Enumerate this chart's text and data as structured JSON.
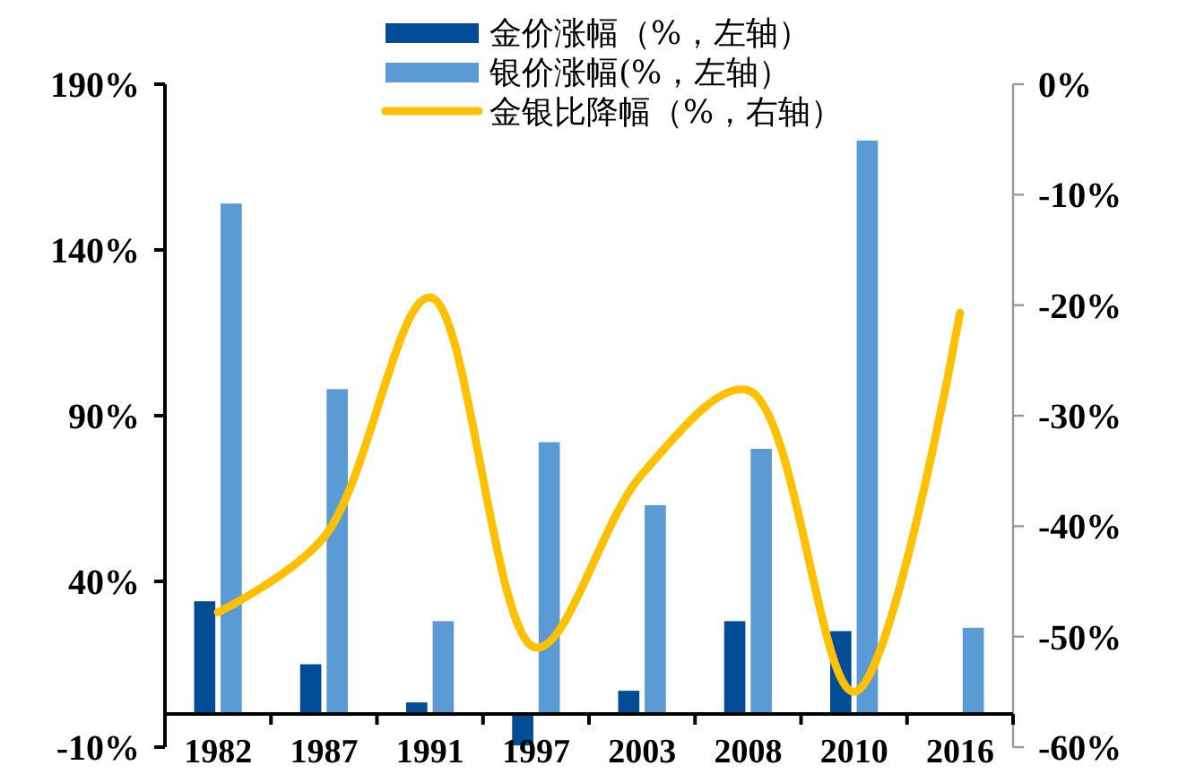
{
  "chart_data": {
    "type": "bar",
    "categories": [
      "1982",
      "1987",
      "1991",
      "1997",
      "2003",
      "2008",
      "2010",
      "2016"
    ],
    "series": [
      {
        "name": "金价涨幅（%，左轴）",
        "color": "#004c97",
        "values": [
          34,
          15,
          3.5,
          -9.5,
          7,
          28,
          25,
          null
        ]
      },
      {
        "name": "银价涨幅(%，左轴）",
        "color": "#5b9bd5",
        "values": [
          154,
          98,
          28,
          82,
          63,
          80,
          173,
          26
        ]
      },
      {
        "name": "金银比降幅（%，右轴）",
        "type": "line",
        "axis": "y2",
        "color": "#ffc000",
        "values": [
          -47.8,
          -41,
          -19.3,
          -51,
          -35.3,
          -27.7,
          -55,
          -20.7
        ]
      }
    ],
    "ylim": [
      -10,
      190
    ],
    "yticks": [
      {
        "value": -10,
        "label": "-10%"
      },
      {
        "value": 40,
        "label": "40%"
      },
      {
        "value": 90,
        "label": "90%"
      },
      {
        "value": 140,
        "label": "140%"
      },
      {
        "value": 190,
        "label": "190%"
      }
    ],
    "y2lim": [
      -60,
      0
    ],
    "y2ticks": [
      {
        "value": -60,
        "label": "-60%"
      },
      {
        "value": -50,
        "label": "-50%"
      },
      {
        "value": -40,
        "label": "-40%"
      },
      {
        "value": -30,
        "label": "-30%"
      },
      {
        "value": -20,
        "label": "-20%"
      },
      {
        "value": -10,
        "label": "-10%"
      },
      {
        "value": 0,
        "label": "0%"
      }
    ],
    "grid": false,
    "legend": "top",
    "marker": "none",
    "line_style": "solid"
  }
}
